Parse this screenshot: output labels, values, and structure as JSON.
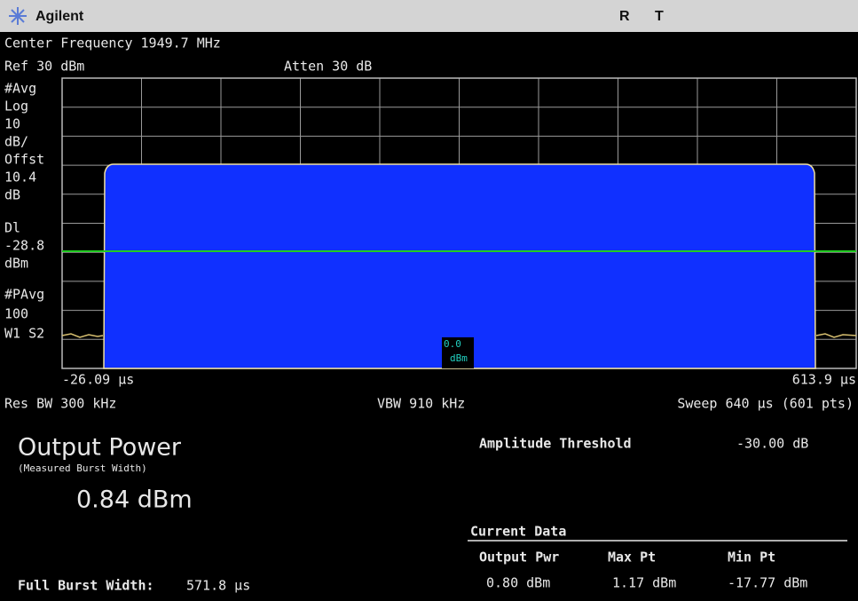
{
  "header": {
    "brand": "Agilent",
    "status": [
      "R",
      "T"
    ]
  },
  "settings": {
    "center": "Center Frequency 1949.7 MHz",
    "ref": "Ref 30 dBm",
    "atten": "Atten 30 dB"
  },
  "left_labels": [
    "#Avg",
    "Log",
    "10",
    "dB/",
    "Offst",
    "10.4",
    "dB",
    "Dl",
    "-28.8",
    "dBm",
    "#PAvg",
    "100",
    "W1 S2"
  ],
  "marker": [
    "0.0",
    "dBm"
  ],
  "x_start": "-26.09 μs",
  "x_end": "613.9 μs",
  "footer": {
    "res_bw": "Res BW 300 kHz",
    "vbw": "VBW 910 kHz",
    "sweep": "Sweep 640 μs (601 pts)"
  },
  "result": {
    "title": "Output Power",
    "subtitle": "(Measured Burst Width)",
    "value": "0.84 dBm",
    "threshold_label": "Amplitude Threshold",
    "threshold_value": "-30.00 dB",
    "burst_label": "Full Burst Width:",
    "burst_value": "571.8 μs"
  },
  "current_data": {
    "title": "Current Data",
    "columns": [
      "Output Pwr",
      "Max Pt",
      "Min Pt"
    ],
    "values": [
      "0.80 dBm",
      "1.17 dBm",
      "-17.77 dBm"
    ]
  }
}
